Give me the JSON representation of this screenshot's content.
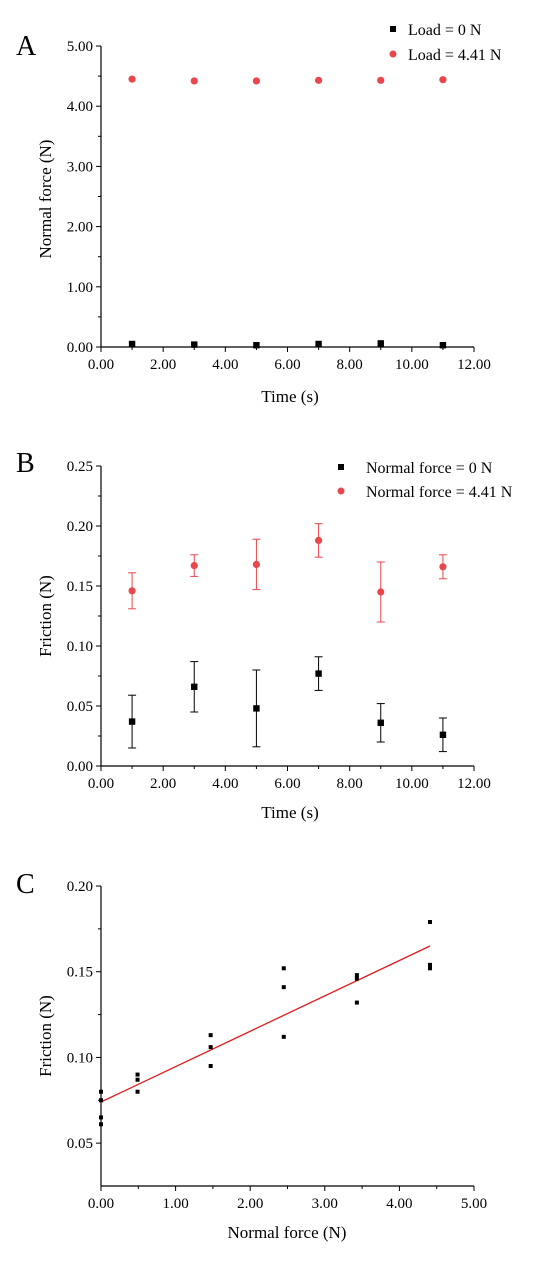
{
  "colors": {
    "black_series": "#000000",
    "red_series": "#e8474c",
    "fit_line": "#e31a1c"
  },
  "chart_data": [
    {
      "panel": "A",
      "type": "scatter",
      "xlabel": "Time (s)",
      "ylabel": "Normal force (N)",
      "xlim": [
        0,
        12
      ],
      "ylim": [
        0,
        5
      ],
      "xticks": [
        "0.00",
        "2.00",
        "4.00",
        "6.00",
        "8.00",
        "10.00",
        "12.00"
      ],
      "yticks": [
        "0.00",
        "1.00",
        "2.00",
        "3.00",
        "4.00",
        "5.00"
      ],
      "legend_position": "top-right",
      "series": [
        {
          "name": "Load = 0 N",
          "marker": "square",
          "color": "#000000",
          "x": [
            1,
            3,
            5,
            7,
            9,
            11
          ],
          "y": [
            0.05,
            0.04,
            0.03,
            0.05,
            0.06,
            0.03
          ]
        },
        {
          "name": "Load = 4.41 N",
          "marker": "circle",
          "color": "#e8474c",
          "x": [
            1,
            3,
            5,
            7,
            9,
            11
          ],
          "y": [
            4.45,
            4.42,
            4.42,
            4.43,
            4.43,
            4.44
          ]
        }
      ]
    },
    {
      "panel": "B",
      "type": "scatter",
      "xlabel": "Time (s)",
      "ylabel": "Friction (N)",
      "xlim": [
        0,
        12
      ],
      "ylim": [
        0,
        0.25
      ],
      "xticks": [
        "0.00",
        "2.00",
        "4.00",
        "6.00",
        "8.00",
        "10.00",
        "12.00"
      ],
      "yticks": [
        "0.00",
        "0.05",
        "0.10",
        "0.15",
        "0.20",
        "0.25"
      ],
      "legend_position": "top-right",
      "series": [
        {
          "name": "Normal force = 0 N",
          "marker": "square",
          "color": "#000000",
          "x": [
            1,
            3,
            5,
            7,
            9,
            11
          ],
          "y": [
            0.037,
            0.066,
            0.048,
            0.077,
            0.036,
            0.026
          ],
          "err": [
            0.022,
            0.021,
            0.032,
            0.014,
            0.016,
            0.014
          ]
        },
        {
          "name": "Normal force = 4.41 N",
          "marker": "circle",
          "color": "#e8474c",
          "x": [
            1,
            3,
            5,
            7,
            9,
            11
          ],
          "y": [
            0.146,
            0.167,
            0.168,
            0.188,
            0.145,
            0.166
          ],
          "err": [
            0.015,
            0.009,
            0.021,
            0.014,
            0.025,
            0.01
          ]
        }
      ]
    },
    {
      "panel": "C",
      "type": "scatter",
      "xlabel": "Normal force (N)",
      "ylabel": "Friction (N)",
      "xlim": [
        0,
        5
      ],
      "ylim": [
        0.025,
        0.2
      ],
      "xticks": [
        "0.00",
        "1.00",
        "2.00",
        "3.00",
        "4.00",
        "5.00"
      ],
      "yticks": [
        "0.05",
        "0.10",
        "0.15",
        "0.20"
      ],
      "series": [
        {
          "marker": "small-square",
          "color": "#000000",
          "x": [
            0,
            0,
            0,
            0,
            0.49,
            0.49,
            0.49,
            1.47,
            1.47,
            1.47,
            2.45,
            2.45,
            2.45,
            3.43,
            3.43,
            3.43,
            4.41,
            4.41,
            4.41
          ],
          "y": [
            0.061,
            0.065,
            0.075,
            0.08,
            0.08,
            0.087,
            0.09,
            0.095,
            0.106,
            0.113,
            0.112,
            0.141,
            0.152,
            0.132,
            0.146,
            0.148,
            0.152,
            0.154,
            0.179
          ]
        }
      ],
      "fit_line": {
        "x": [
          0,
          4.41
        ],
        "y": [
          0.074,
          0.165
        ],
        "color": "#e31a1c"
      }
    }
  ]
}
